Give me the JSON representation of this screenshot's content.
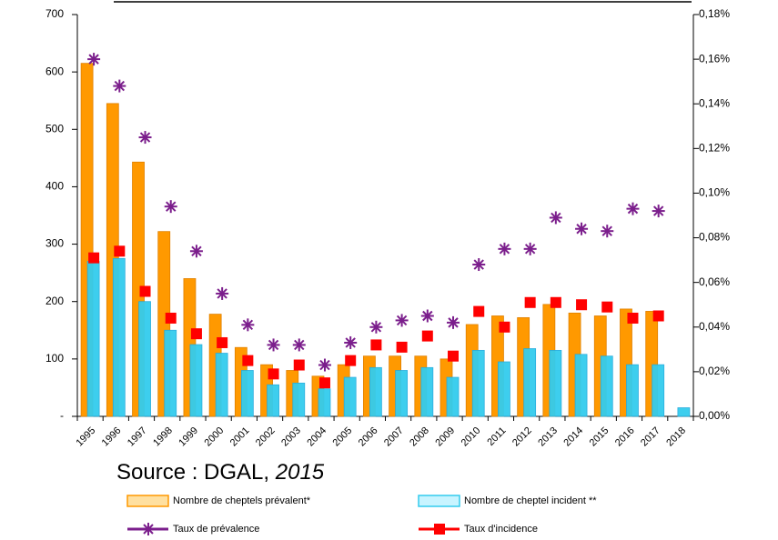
{
  "chart_data": {
    "type": "bar",
    "source": "Source : DGAL,",
    "source_year": "2015",
    "categories": [
      "1995",
      "1996",
      "1997",
      "1998",
      "1999",
      "2000",
      "2001",
      "2002",
      "2003",
      "2004",
      "2005",
      "2006",
      "2007",
      "2008",
      "2009",
      "2010",
      "2011",
      "2012",
      "2013",
      "2014",
      "2015",
      "2016",
      "2017",
      "2018"
    ],
    "series": [
      {
        "name": "Nombre de cheptels prévalent*",
        "type": "bar",
        "color": "#ff9900",
        "axis": "y",
        "values": [
          615,
          545,
          443,
          322,
          240,
          178,
          120,
          90,
          80,
          70,
          90,
          105,
          105,
          105,
          100,
          160,
          175,
          172,
          195,
          180,
          175,
          187,
          183,
          null
        ]
      },
      {
        "name": "Nombre de cheptel incident **",
        "type": "bar",
        "color": "#33ccee",
        "axis": "y",
        "values": [
          270,
          275,
          200,
          150,
          125,
          110,
          80,
          55,
          58,
          48,
          68,
          85,
          80,
          85,
          68,
          115,
          95,
          118,
          115,
          108,
          105,
          90,
          90,
          15
        ]
      },
      {
        "name": "Taux de prévalence",
        "type": "line",
        "color": "#7b1e8c",
        "axis": "y2",
        "values": [
          0.16,
          0.148,
          0.125,
          0.094,
          0.074,
          0.055,
          0.041,
          0.032,
          0.032,
          0.023,
          0.033,
          0.04,
          0.043,
          0.045,
          0.042,
          0.068,
          0.075,
          0.075,
          0.089,
          0.084,
          0.083,
          0.093,
          0.092,
          null
        ]
      },
      {
        "name": "Taux d'incidence",
        "type": "line",
        "color": "#ff0000",
        "axis": "y2",
        "values": [
          0.071,
          0.074,
          0.056,
          0.044,
          0.037,
          0.033,
          0.025,
          0.019,
          0.023,
          0.015,
          0.025,
          0.032,
          0.031,
          0.036,
          0.027,
          0.047,
          0.04,
          0.051,
          0.051,
          0.05,
          0.049,
          0.044,
          0.045,
          null
        ]
      }
    ],
    "ylim": [
      0,
      700
    ],
    "yticks": [
      {
        "value": 0,
        "label": "-"
      },
      100,
      200,
      300,
      400,
      500,
      600,
      700
    ],
    "y2lim": [
      0,
      0.18
    ],
    "y2ticks": [
      {
        "value": 0,
        "label": "0,00%"
      },
      {
        "value": 0.02,
        "label": "0,02%"
      },
      {
        "value": 0.04,
        "label": "0,04%"
      },
      {
        "value": 0.06,
        "label": "0,06%"
      },
      {
        "value": 0.08,
        "label": "0,08%"
      },
      {
        "value": 0.1,
        "label": "0,10%"
      },
      {
        "value": 0.12,
        "label": "0,12%"
      },
      {
        "value": 0.14,
        "label": "0,14%"
      },
      {
        "value": 0.16,
        "label": "0,16%"
      },
      {
        "value": 0.18,
        "label": "0,18%"
      }
    ],
    "legend": "bottom"
  }
}
